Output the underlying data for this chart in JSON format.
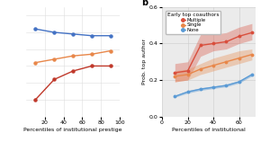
{
  "panel_a": {
    "x": [
      10,
      30,
      50,
      70,
      90
    ],
    "blue": [
      0.52,
      0.5,
      0.49,
      0.48,
      0.48
    ],
    "orange": [
      0.32,
      0.34,
      0.36,
      0.37,
      0.39
    ],
    "red": [
      0.1,
      0.22,
      0.27,
      0.3,
      0.3
    ],
    "blue_color": "#4472c4",
    "orange_color": "#e8874a",
    "red_color": "#c0392b",
    "xlabel": "Percentiles of institutional prestige",
    "xlim": [
      0,
      100
    ],
    "ylim": [
      0.0,
      0.65
    ],
    "xticks": [
      20,
      40,
      60,
      80,
      100
    ]
  },
  "panel_b": {
    "x": [
      10,
      20,
      30,
      40,
      50,
      60,
      70
    ],
    "red_mean": [
      0.24,
      0.25,
      0.39,
      0.4,
      0.41,
      0.44,
      0.46
    ],
    "red_lo": [
      0.19,
      0.2,
      0.33,
      0.36,
      0.37,
      0.4,
      0.42
    ],
    "red_hi": [
      0.29,
      0.3,
      0.45,
      0.45,
      0.46,
      0.49,
      0.51
    ],
    "orange_mean": [
      0.22,
      0.23,
      0.26,
      0.28,
      0.3,
      0.32,
      0.34
    ],
    "orange_lo": [
      0.19,
      0.2,
      0.23,
      0.25,
      0.27,
      0.29,
      0.31
    ],
    "orange_hi": [
      0.25,
      0.26,
      0.29,
      0.32,
      0.34,
      0.36,
      0.37
    ],
    "blue_mean": [
      0.11,
      0.135,
      0.15,
      0.16,
      0.17,
      0.19,
      0.23
    ],
    "blue_lo": [
      0.105,
      0.128,
      0.143,
      0.153,
      0.163,
      0.183,
      0.222
    ],
    "blue_hi": [
      0.115,
      0.142,
      0.157,
      0.167,
      0.177,
      0.197,
      0.238
    ],
    "red_color": "#d94f3d",
    "orange_color": "#e8874a",
    "blue_color": "#5b9bd5",
    "ylabel": "Prob. top author",
    "xlabel": "Percentiles of institutional",
    "xlim": [
      0,
      73
    ],
    "ylim": [
      0.0,
      0.6
    ],
    "xticks": [
      0,
      20,
      40,
      60
    ],
    "yticks": [
      0.0,
      0.2,
      0.4,
      0.6
    ],
    "legend_title": "Early top coauthors",
    "legend_labels": [
      "Multiple",
      "Single",
      "None"
    ]
  },
  "panel_a_bg": "#ffffff",
  "panel_b_bg": "#ebebeb"
}
